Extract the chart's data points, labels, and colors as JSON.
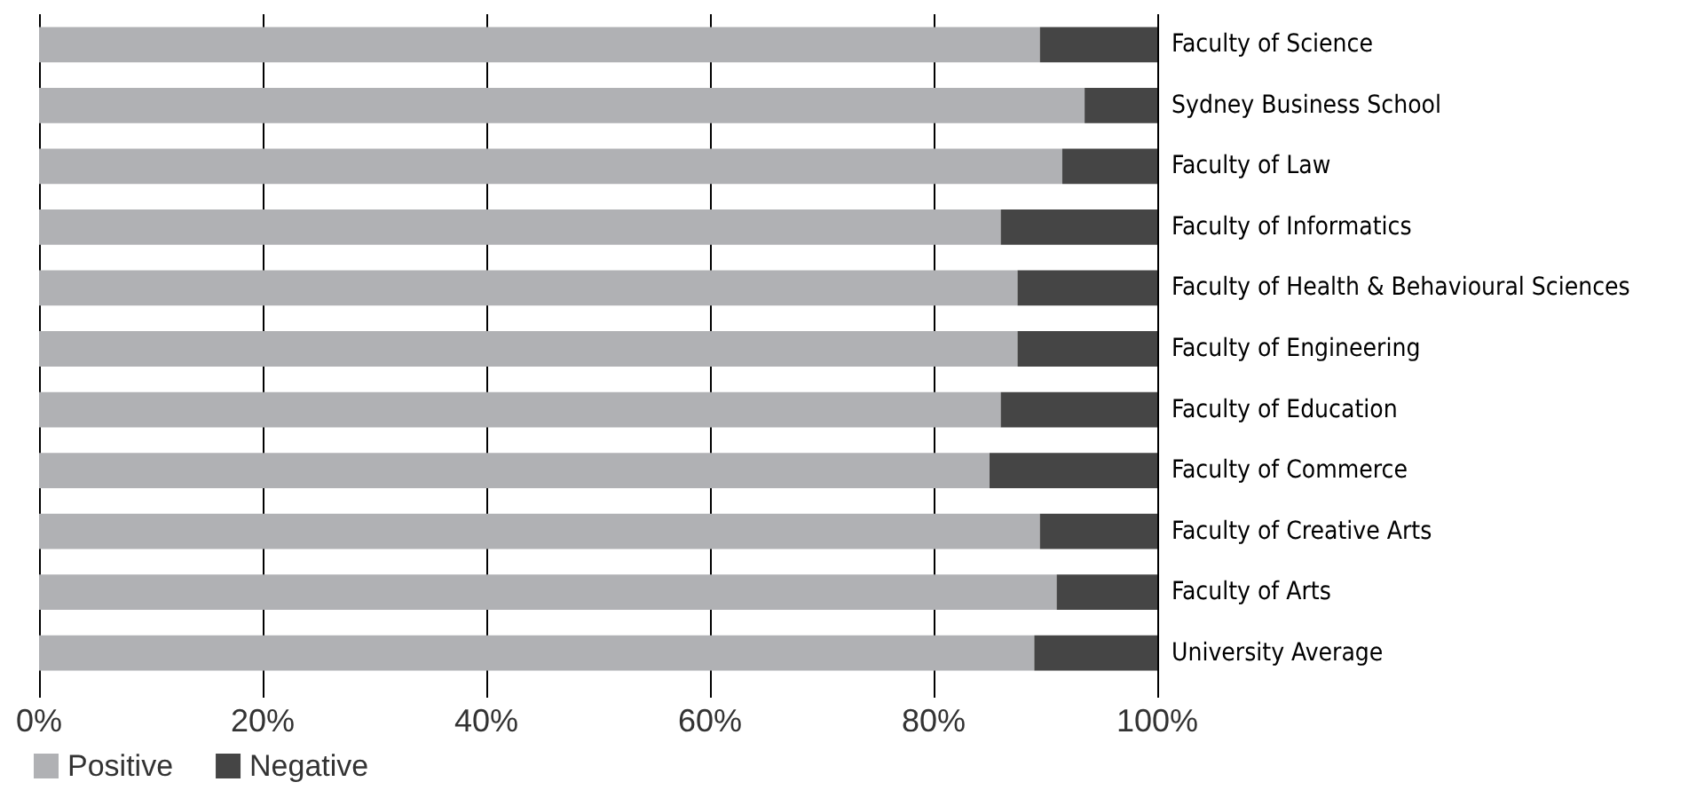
{
  "chart_data": {
    "type": "bar",
    "orientation": "horizontal",
    "stacked": true,
    "categories": [
      "Faculty of Science",
      "Sydney Business School",
      "Faculty of Law",
      "Faculty of Informatics",
      "Faculty of Health & Behavioural Sciences",
      "Faculty of Engineering",
      "Faculty of Education",
      "Faculty of Commerce",
      "Faculty of Creative Arts",
      "Faculty of Arts",
      "University Average"
    ],
    "series": [
      {
        "name": "Positive",
        "color": "#b0b1b4",
        "values": [
          89.5,
          93.5,
          91.5,
          86,
          87.5,
          87.5,
          86,
          85,
          89.5,
          91,
          89
        ]
      },
      {
        "name": "Negative",
        "color": "#454545",
        "values": [
          10.5,
          6.5,
          8.5,
          14,
          12.5,
          12.5,
          14,
          15,
          10.5,
          9,
          11
        ]
      }
    ],
    "xlim": [
      0,
      100
    ],
    "xticks": [
      {
        "value": 0,
        "label": "0%"
      },
      {
        "value": 20,
        "label": "20%"
      },
      {
        "value": 40,
        "label": "40%"
      },
      {
        "value": 60,
        "label": "60%"
      },
      {
        "value": 80,
        "label": "80%"
      },
      {
        "value": 100,
        "label": "100%"
      }
    ],
    "grid": "x",
    "legend": "bottom left"
  }
}
